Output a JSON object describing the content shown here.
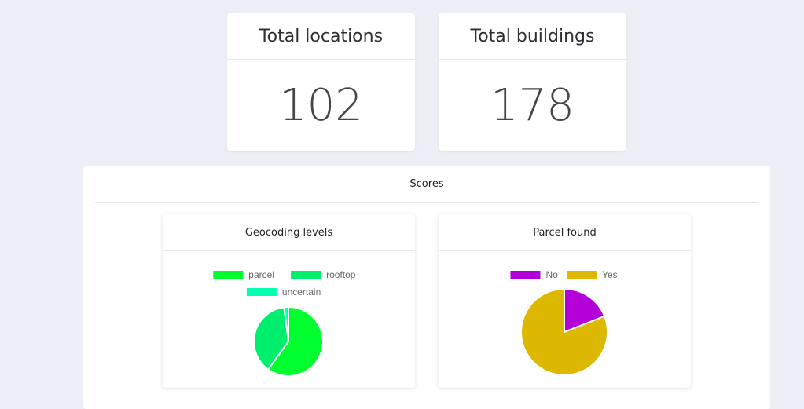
{
  "stats": [
    {
      "label": "Total locations",
      "value": "102"
    },
    {
      "label": "Total buildings",
      "value": "178"
    }
  ],
  "scores": {
    "title": "Scores"
  },
  "chart_data": [
    {
      "type": "pie",
      "title": "Geocoding levels",
      "categories": [
        "parcel",
        "rooftop",
        "uncertain"
      ],
      "values": [
        60,
        38,
        2
      ],
      "colors": [
        "#00ff2e",
        "#00ee6e",
        "#00ffb0"
      ],
      "legend": "top"
    },
    {
      "type": "pie",
      "title": "Parcel found",
      "categories": [
        "No",
        "Yes"
      ],
      "values": [
        19,
        81
      ],
      "colors": [
        "#b400d8",
        "#dcb800"
      ],
      "legend": "top"
    }
  ]
}
